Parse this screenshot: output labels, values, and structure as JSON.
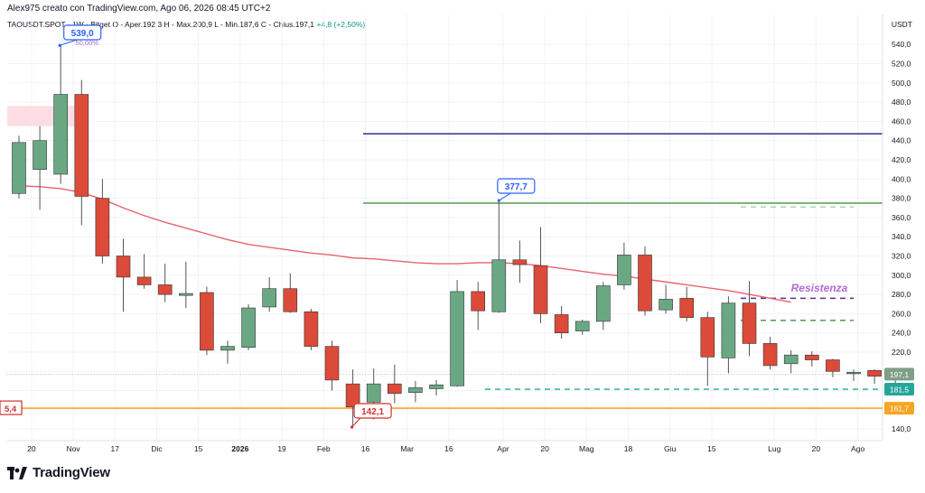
{
  "header": {
    "author_line": "Alex975 creato con TradingView.com, Ago 06, 2026 08:45 UTC+2"
  },
  "symbol_info": {
    "text": "TAOUSDT.SPOT · 1W · Bitget",
    "ohlc": "O - Aper.192,3  H - Max.200,9  L - Min.187,6  C - Chius.197,1",
    "change": "+4,8 (+2,50%)"
  },
  "currency": "USDT",
  "branding": {
    "name": "TradingView"
  },
  "chart_data": {
    "type": "candlestick",
    "ylim": [
      128,
      558
    ],
    "y_ticks": [
      140,
      160,
      180,
      200,
      220,
      240,
      260,
      280,
      300,
      320,
      340,
      360,
      380,
      400,
      420,
      440,
      460,
      480,
      500,
      520,
      540
    ],
    "y_tick_labels": [
      "140,0",
      "160,0",
      "180,0",
      "200,0",
      "220,0",
      "240,0",
      "260,0",
      "280,0",
      "300,0",
      "320,0",
      "340,0",
      "360,0",
      "380,0",
      "400,0",
      "420,0",
      "440,0",
      "460,0",
      "480,0",
      "500,0",
      "520,0",
      "540,0"
    ],
    "x_ticks": [
      {
        "label": "20",
        "i": 0.6
      },
      {
        "label": "Nov",
        "i": 2.6
      },
      {
        "label": "17",
        "i": 4.6
      },
      {
        "label": "Dic",
        "i": 6.6
      },
      {
        "label": "15",
        "i": 8.6
      },
      {
        "label": "2026",
        "i": 10.6
      },
      {
        "label": "19",
        "i": 12.6
      },
      {
        "label": "Feb",
        "i": 14.6
      },
      {
        "label": "16",
        "i": 16.6
      },
      {
        "label": "Mar",
        "i": 18.6
      },
      {
        "label": "16",
        "i": 20.6
      },
      {
        "label": "Apr",
        "i": 23.2
      },
      {
        "label": "20",
        "i": 25.2
      },
      {
        "label": "Mag",
        "i": 27.2
      },
      {
        "label": "18",
        "i": 29.2
      },
      {
        "label": "Giu",
        "i": 31.2
      },
      {
        "label": "15",
        "i": 33.2
      },
      {
        "label": "Lug",
        "i": 36.2
      },
      {
        "label": "20",
        "i": 38.2
      },
      {
        "label": "Ago",
        "i": 40.2
      }
    ],
    "candles": [
      {
        "o": 385,
        "h": 445,
        "l": 380,
        "c": 438
      },
      {
        "o": 410,
        "h": 455,
        "l": 368,
        "c": 440
      },
      {
        "o": 405,
        "h": 539,
        "l": 395,
        "c": 488
      },
      {
        "o": 488,
        "h": 503,
        "l": 352,
        "c": 382
      },
      {
        "o": 380,
        "h": 400,
        "l": 312,
        "c": 320
      },
      {
        "o": 320,
        "h": 338,
        "l": 262,
        "c": 298
      },
      {
        "o": 298,
        "h": 322,
        "l": 286,
        "c": 290
      },
      {
        "o": 290,
        "h": 312,
        "l": 272,
        "c": 280
      },
      {
        "o": 279,
        "h": 314,
        "l": 266,
        "c": 281
      },
      {
        "o": 282,
        "h": 288,
        "l": 217,
        "c": 222
      },
      {
        "o": 222,
        "h": 232,
        "l": 208,
        "c": 226
      },
      {
        "o": 225,
        "h": 270,
        "l": 222,
        "c": 266
      },
      {
        "o": 267,
        "h": 298,
        "l": 262,
        "c": 286
      },
      {
        "o": 286,
        "h": 302,
        "l": 261,
        "c": 262
      },
      {
        "o": 262,
        "h": 265,
        "l": 222,
        "c": 226
      },
      {
        "o": 226,
        "h": 232,
        "l": 180,
        "c": 191
      },
      {
        "o": 187,
        "h": 202,
        "l": 142,
        "c": 163
      },
      {
        "o": 168,
        "h": 203,
        "l": 150,
        "c": 187
      },
      {
        "o": 187,
        "h": 207,
        "l": 167,
        "c": 177
      },
      {
        "o": 178,
        "h": 190,
        "l": 168,
        "c": 183
      },
      {
        "o": 182,
        "h": 191,
        "l": 175,
        "c": 186
      },
      {
        "o": 185,
        "h": 295,
        "l": 184,
        "c": 283
      },
      {
        "o": 283,
        "h": 293,
        "l": 243,
        "c": 263
      },
      {
        "o": 262,
        "h": 378,
        "l": 261,
        "c": 316
      },
      {
        "o": 316,
        "h": 336,
        "l": 292,
        "c": 311
      },
      {
        "o": 310,
        "h": 350,
        "l": 250,
        "c": 260
      },
      {
        "o": 259,
        "h": 268,
        "l": 234,
        "c": 240
      },
      {
        "o": 242,
        "h": 254,
        "l": 238,
        "c": 252
      },
      {
        "o": 252,
        "h": 293,
        "l": 243,
        "c": 289
      },
      {
        "o": 290,
        "h": 334,
        "l": 285,
        "c": 321
      },
      {
        "o": 321,
        "h": 330,
        "l": 258,
        "c": 263
      },
      {
        "o": 264,
        "h": 290,
        "l": 260,
        "c": 275
      },
      {
        "o": 276,
        "h": 288,
        "l": 252,
        "c": 256
      },
      {
        "o": 256,
        "h": 262,
        "l": 185,
        "c": 215
      },
      {
        "o": 214,
        "h": 278,
        "l": 198,
        "c": 271
      },
      {
        "o": 271,
        "h": 294,
        "l": 216,
        "c": 229
      },
      {
        "o": 229,
        "h": 236,
        "l": 202,
        "c": 206
      },
      {
        "o": 208,
        "h": 222,
        "l": 198,
        "c": 217
      },
      {
        "o": 217,
        "h": 221,
        "l": 205,
        "c": 212
      },
      {
        "o": 212,
        "h": 213,
        "l": 194,
        "c": 200
      },
      {
        "o": 199,
        "h": 202,
        "l": 190,
        "c": 199
      },
      {
        "o": 201,
        "h": 202,
        "l": 187,
        "c": 195
      },
      {
        "o": 192,
        "h": 201,
        "l": 188,
        "c": 197
      }
    ],
    "moving_average": [
      393,
      392,
      390,
      386,
      379,
      370,
      362,
      355,
      349,
      343,
      337,
      332,
      329,
      326,
      323,
      321,
      318,
      317,
      315,
      313,
      312,
      312,
      313,
      313,
      312,
      310,
      307,
      304,
      301,
      299,
      296,
      293,
      290,
      287,
      284,
      280,
      276,
      272
    ],
    "lines": [
      {
        "kind": "solid",
        "color": "#3f3f9e",
        "price": 447
      },
      {
        "kind": "solid",
        "color": "#5fa35f",
        "price": 375
      },
      {
        "kind": "solid",
        "color": "#f5a623",
        "price": 161.7
      },
      {
        "kind": "dashed",
        "color": "#9fd49f",
        "price": 371
      },
      {
        "kind": "dashed",
        "color": "#5a2f8f",
        "price": 276
      },
      {
        "kind": "dashed",
        "color": "#3e8e41",
        "price": 253
      },
      {
        "kind": "dashed",
        "color": "#26a69a",
        "price": 181.5
      },
      {
        "kind": "dotted",
        "color": "#b0b0b0",
        "price": 197.1
      }
    ],
    "annotations": {
      "high_label": "539,0",
      "high_pct": "50,00%",
      "mid_label": "377,7",
      "low_label": "142,1",
      "left_cut_label": "5,4",
      "resistance": "Resistenza"
    },
    "price_tags": [
      {
        "text": "197,1",
        "price": 197.1,
        "color": "#7f9f86"
      },
      {
        "text": "181,5",
        "price": 181.5,
        "color": "#26a69a"
      },
      {
        "text": "161,7",
        "price": 161.7,
        "color": "#f5a623"
      }
    ],
    "colors": {
      "up": "#6aa884",
      "down": "#dc4a3a",
      "ma": "#e8626f"
    }
  }
}
